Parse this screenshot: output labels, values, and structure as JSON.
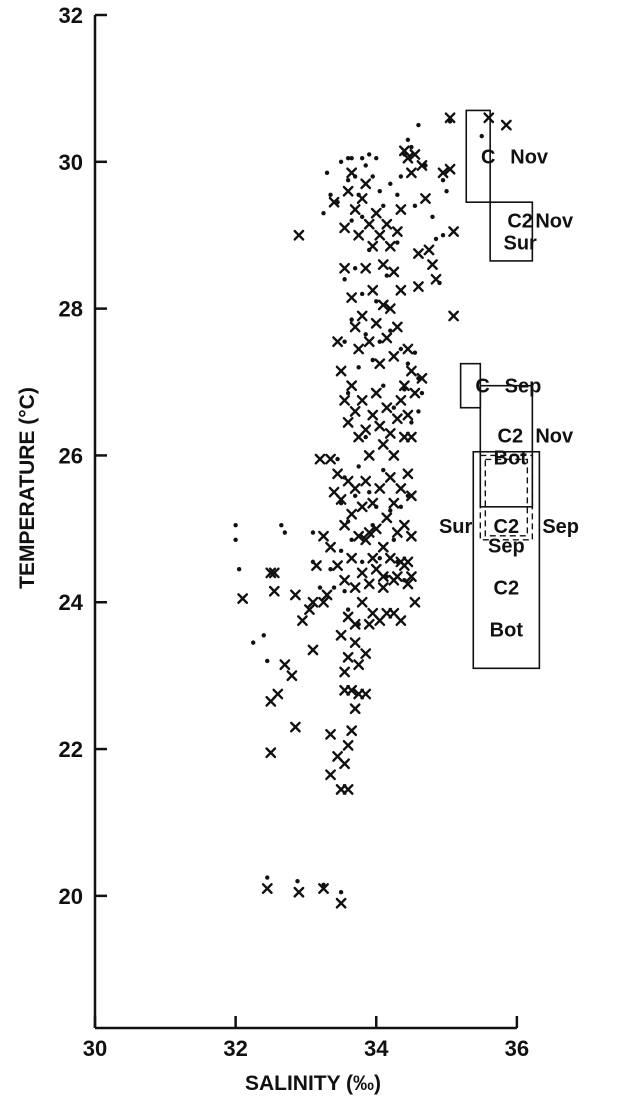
{
  "chart_data": {
    "type": "scatter",
    "title": "",
    "xlabel": "SALINITY (‰)",
    "ylabel": "TEMPERATURE (°C)",
    "xlim": [
      30,
      36.4
    ],
    "ylim": [
      18.2,
      32
    ],
    "xticks": [
      30,
      32,
      34,
      36
    ],
    "yticks": [
      20,
      22,
      24,
      26,
      28,
      30,
      32
    ],
    "grid": false,
    "series": [
      {
        "marker": "dot",
        "points": [
          [
            32.0,
            25.05
          ],
          [
            32.0,
            24.85
          ],
          [
            32.05,
            24.45
          ],
          [
            32.25,
            23.45
          ],
          [
            32.4,
            23.55
          ],
          [
            32.45,
            23.2
          ],
          [
            32.45,
            20.25
          ],
          [
            32.65,
            25.05
          ],
          [
            32.7,
            24.95
          ],
          [
            32.88,
            20.2
          ],
          [
            33.1,
            24.55
          ],
          [
            33.1,
            24.95
          ],
          [
            33.2,
            24.2
          ],
          [
            33.35,
            24.45
          ],
          [
            33.4,
            24.2
          ],
          [
            33.5,
            24.7
          ],
          [
            33.25,
            20.15
          ],
          [
            33.5,
            20.05
          ],
          [
            33.25,
            29.3
          ],
          [
            33.3,
            29.85
          ],
          [
            33.35,
            29.55
          ],
          [
            33.45,
            29.45
          ],
          [
            33.5,
            30.0
          ],
          [
            33.55,
            28.4
          ],
          [
            33.6,
            30.05
          ],
          [
            33.6,
            29.75
          ],
          [
            33.65,
            29.2
          ],
          [
            33.65,
            30.05
          ],
          [
            33.7,
            29.8
          ],
          [
            33.75,
            29.55
          ],
          [
            33.8,
            29.25
          ],
          [
            33.8,
            30.05
          ],
          [
            33.85,
            29.95
          ],
          [
            33.9,
            30.1
          ],
          [
            33.95,
            29.8
          ],
          [
            34.0,
            30.05
          ],
          [
            34.05,
            29.6
          ],
          [
            34.1,
            29.4
          ],
          [
            34.2,
            29.7
          ],
          [
            34.3,
            29.55
          ],
          [
            34.35,
            29.8
          ],
          [
            34.4,
            30.1
          ],
          [
            34.45,
            30.3
          ],
          [
            34.5,
            30.2
          ],
          [
            34.55,
            29.4
          ],
          [
            34.6,
            30.5
          ],
          [
            34.7,
            29.95
          ],
          [
            34.8,
            29.25
          ],
          [
            34.85,
            28.95
          ],
          [
            34.9,
            28.35
          ],
          [
            34.95,
            29.75
          ],
          [
            35.0,
            29.6
          ],
          [
            35.05,
            30.55
          ],
          [
            34.95,
            29.0
          ],
          [
            33.55,
            27.55
          ],
          [
            33.6,
            26.85
          ],
          [
            33.65,
            27.85
          ],
          [
            33.7,
            28.55
          ],
          [
            33.75,
            27.2
          ],
          [
            33.8,
            28.2
          ],
          [
            33.85,
            27.65
          ],
          [
            33.9,
            28.8
          ],
          [
            33.95,
            27.3
          ],
          [
            34.0,
            28.1
          ],
          [
            34.05,
            27.55
          ],
          [
            34.1,
            26.95
          ],
          [
            34.15,
            28.45
          ],
          [
            34.2,
            27.7
          ],
          [
            34.25,
            26.65
          ],
          [
            34.3,
            28.9
          ],
          [
            34.35,
            27.45
          ],
          [
            34.4,
            26.9
          ],
          [
            34.45,
            27.25
          ],
          [
            34.5,
            26.45
          ],
          [
            34.55,
            27.4
          ],
          [
            34.6,
            26.6
          ],
          [
            34.65,
            26.85
          ],
          [
            34.6,
            27.05
          ],
          [
            33.45,
            25.95
          ],
          [
            33.5,
            25.35
          ],
          [
            33.55,
            25.7
          ],
          [
            33.6,
            25.1
          ],
          [
            33.65,
            24.85
          ],
          [
            33.7,
            25.45
          ],
          [
            33.75,
            25.85
          ],
          [
            33.8,
            24.55
          ],
          [
            33.85,
            26.25
          ],
          [
            33.9,
            25.5
          ],
          [
            33.95,
            25.05
          ],
          [
            34.0,
            25.3
          ],
          [
            34.05,
            24.6
          ],
          [
            34.1,
            25.8
          ],
          [
            34.15,
            24.35
          ],
          [
            34.2,
            25.25
          ],
          [
            34.25,
            24.85
          ],
          [
            34.3,
            24.55
          ],
          [
            34.35,
            25.3
          ],
          [
            34.4,
            24.3
          ],
          [
            34.45,
            25.45
          ],
          [
            33.55,
            24.15
          ],
          [
            33.6,
            23.9
          ],
          [
            33.75,
            23.7
          ],
          [
            35.5,
            30.35
          ]
        ]
      },
      {
        "marker": "x",
        "points": [
          [
            32.1,
            24.05
          ],
          [
            32.5,
            24.4
          ],
          [
            32.55,
            24.4
          ],
          [
            32.55,
            24.15
          ],
          [
            32.6,
            22.75
          ],
          [
            32.5,
            22.65
          ],
          [
            32.5,
            21.95
          ],
          [
            32.7,
            23.15
          ],
          [
            32.8,
            23.0
          ],
          [
            32.85,
            24.1
          ],
          [
            32.85,
            22.3
          ],
          [
            32.95,
            23.75
          ],
          [
            33.05,
            23.9
          ],
          [
            33.1,
            24.0
          ],
          [
            33.1,
            23.35
          ],
          [
            33.15,
            24.5
          ],
          [
            33.25,
            24.0
          ],
          [
            33.3,
            24.1
          ],
          [
            33.35,
            22.2
          ],
          [
            33.35,
            21.65
          ],
          [
            33.45,
            21.9
          ],
          [
            33.5,
            21.45
          ],
          [
            33.55,
            21.8
          ],
          [
            33.6,
            21.45
          ],
          [
            33.6,
            22.05
          ],
          [
            33.65,
            22.25
          ],
          [
            33.7,
            22.55
          ],
          [
            33.55,
            22.8
          ],
          [
            33.65,
            22.8
          ],
          [
            33.75,
            22.75
          ],
          [
            33.85,
            22.75
          ],
          [
            33.55,
            23.05
          ],
          [
            33.6,
            23.25
          ],
          [
            33.7,
            23.45
          ],
          [
            33.75,
            23.15
          ],
          [
            33.85,
            23.3
          ],
          [
            33.5,
            23.55
          ],
          [
            33.6,
            23.8
          ],
          [
            33.7,
            23.7
          ],
          [
            33.8,
            24.0
          ],
          [
            33.9,
            23.7
          ],
          [
            33.95,
            23.85
          ],
          [
            34.05,
            23.75
          ],
          [
            34.1,
            24.2
          ],
          [
            34.15,
            23.85
          ],
          [
            34.25,
            23.85
          ],
          [
            34.35,
            23.75
          ],
          [
            34.45,
            24.25
          ],
          [
            34.55,
            24.0
          ],
          [
            34.3,
            24.35
          ],
          [
            34.4,
            24.5
          ],
          [
            34.5,
            24.35
          ],
          [
            32.45,
            20.1
          ],
          [
            32.9,
            20.05
          ],
          [
            33.25,
            20.1
          ],
          [
            33.5,
            19.9
          ],
          [
            32.9,
            29.0
          ],
          [
            33.4,
            29.45
          ],
          [
            33.55,
            29.1
          ],
          [
            33.6,
            29.6
          ],
          [
            33.65,
            29.85
          ],
          [
            33.7,
            29.35
          ],
          [
            33.75,
            29.0
          ],
          [
            33.8,
            29.5
          ],
          [
            33.85,
            29.7
          ],
          [
            33.9,
            29.15
          ],
          [
            33.95,
            28.85
          ],
          [
            34.0,
            29.3
          ],
          [
            34.05,
            29.0
          ],
          [
            34.1,
            28.6
          ],
          [
            34.15,
            29.15
          ],
          [
            34.2,
            28.85
          ],
          [
            34.25,
            28.5
          ],
          [
            34.3,
            29.05
          ],
          [
            34.35,
            29.35
          ],
          [
            34.4,
            30.15
          ],
          [
            34.45,
            30.05
          ],
          [
            34.5,
            29.85
          ],
          [
            34.55,
            30.1
          ],
          [
            34.65,
            29.95
          ],
          [
            34.7,
            29.5
          ],
          [
            34.75,
            28.8
          ],
          [
            34.8,
            28.6
          ],
          [
            34.85,
            28.4
          ],
          [
            34.6,
            28.3
          ],
          [
            34.6,
            28.75
          ],
          [
            34.95,
            29.85
          ],
          [
            35.05,
            30.6
          ],
          [
            35.05,
            29.9
          ],
          [
            35.1,
            29.05
          ],
          [
            35.1,
            27.9
          ],
          [
            35.6,
            30.6
          ],
          [
            35.85,
            30.5
          ],
          [
            33.55,
            28.55
          ],
          [
            33.65,
            28.15
          ],
          [
            33.7,
            27.75
          ],
          [
            33.75,
            27.45
          ],
          [
            33.8,
            27.9
          ],
          [
            33.85,
            28.55
          ],
          [
            33.9,
            27.55
          ],
          [
            33.95,
            28.25
          ],
          [
            34.0,
            27.8
          ],
          [
            34.05,
            27.25
          ],
          [
            34.1,
            28.05
          ],
          [
            34.15,
            27.6
          ],
          [
            34.2,
            28.0
          ],
          [
            34.25,
            27.35
          ],
          [
            34.3,
            27.75
          ],
          [
            34.35,
            28.25
          ],
          [
            34.4,
            26.95
          ],
          [
            34.45,
            27.45
          ],
          [
            34.5,
            27.15
          ],
          [
            34.55,
            26.85
          ],
          [
            34.65,
            27.05
          ],
          [
            33.45,
            27.55
          ],
          [
            33.5,
            27.15
          ],
          [
            33.55,
            26.75
          ],
          [
            33.6,
            26.45
          ],
          [
            33.65,
            26.95
          ],
          [
            33.7,
            26.6
          ],
          [
            33.75,
            26.25
          ],
          [
            33.8,
            26.75
          ],
          [
            33.85,
            26.35
          ],
          [
            33.9,
            26.0
          ],
          [
            33.95,
            26.55
          ],
          [
            34.0,
            26.85
          ],
          [
            34.05,
            26.4
          ],
          [
            34.1,
            26.15
          ],
          [
            34.15,
            26.65
          ],
          [
            34.2,
            26.3
          ],
          [
            34.25,
            26.0
          ],
          [
            34.3,
            26.5
          ],
          [
            34.35,
            26.75
          ],
          [
            34.4,
            26.25
          ],
          [
            34.45,
            26.55
          ],
          [
            34.5,
            26.25
          ],
          [
            33.2,
            25.95
          ],
          [
            33.35,
            25.95
          ],
          [
            33.4,
            25.5
          ],
          [
            33.45,
            25.75
          ],
          [
            33.5,
            25.4
          ],
          [
            33.55,
            25.05
          ],
          [
            33.6,
            25.65
          ],
          [
            33.65,
            25.2
          ],
          [
            33.7,
            25.55
          ],
          [
            33.75,
            24.9
          ],
          [
            33.8,
            25.3
          ],
          [
            33.85,
            25.65
          ],
          [
            33.9,
            24.95
          ],
          [
            33.95,
            25.35
          ],
          [
            34.0,
            25.0
          ],
          [
            34.05,
            25.55
          ],
          [
            34.1,
            24.75
          ],
          [
            34.15,
            25.15
          ],
          [
            34.2,
            25.7
          ],
          [
            34.25,
            25.35
          ],
          [
            34.3,
            24.95
          ],
          [
            34.35,
            25.55
          ],
          [
            34.4,
            25.05
          ],
          [
            34.45,
            25.75
          ],
          [
            34.5,
            25.45
          ],
          [
            34.5,
            24.9
          ],
          [
            33.25,
            24.9
          ],
          [
            33.35,
            24.75
          ],
          [
            33.45,
            24.5
          ],
          [
            33.55,
            24.3
          ],
          [
            33.65,
            24.6
          ],
          [
            33.7,
            24.2
          ],
          [
            33.8,
            24.4
          ],
          [
            33.85,
            24.85
          ],
          [
            33.9,
            24.25
          ],
          [
            33.95,
            24.6
          ],
          [
            34.0,
            24.45
          ],
          [
            34.1,
            24.35
          ],
          [
            34.2,
            24.6
          ],
          [
            34.25,
            24.3
          ],
          [
            34.35,
            24.55
          ],
          [
            34.45,
            24.55
          ]
        ]
      }
    ],
    "annotations": [
      {
        "labels": [
          "C"
        ],
        "side": [
          "Nov"
        ],
        "box": {
          "s": [
            35.28,
            35.62
          ],
          "t": [
            29.45,
            30.7
          ]
        }
      },
      {
        "labels": [
          "C2",
          "Sur"
        ],
        "side": [
          "Nov"
        ],
        "box": {
          "s": [
            35.62,
            36.22
          ],
          "t": [
            28.65,
            29.45
          ]
        }
      },
      {
        "labels": [
          "C"
        ],
        "side": [
          "Sep"
        ],
        "box": {
          "s": [
            35.2,
            35.48
          ],
          "t": [
            26.65,
            27.25
          ]
        }
      },
      {
        "labels": [
          "C2",
          "Bot"
        ],
        "side": [
          "Nov"
        ],
        "box": {
          "s": [
            35.48,
            36.22
          ],
          "t": [
            25.3,
            26.95
          ]
        }
      },
      {
        "labels": [
          "C2"
        ],
        "left": "Sur",
        "side": [
          "Sep"
        ],
        "style": "dashed",
        "box": {
          "s": [
            35.48,
            36.22
          ],
          "t": [
            24.85,
            26.0
          ]
        }
      },
      {
        "labels": [
          "Sep",
          "C2",
          "Bot"
        ],
        "box": {
          "s": [
            35.38,
            36.32
          ],
          "t": [
            23.1,
            26.05
          ]
        }
      }
    ]
  }
}
